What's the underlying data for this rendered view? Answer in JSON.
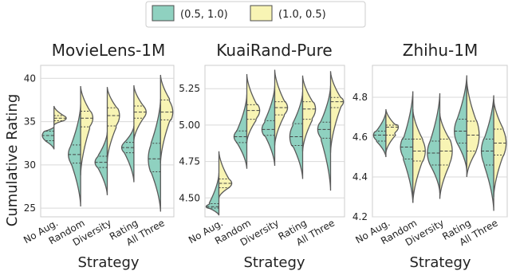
{
  "figure": {
    "ylabel": "Cumulative Rating",
    "legend": {
      "placement": "top-center",
      "entries": [
        {
          "label": "(0.5, 1.0)",
          "color": "#8fd1c0"
        },
        {
          "label": "(1.0, 0.5)",
          "color": "#f8f4b4"
        }
      ]
    }
  },
  "chart_data": [
    {
      "type": "violin",
      "title": "MovieLens-1M",
      "xlabel": "Strategy",
      "categories": [
        "No Aug.",
        "Random",
        "Diversity",
        "Rating",
        "All Three"
      ],
      "ylim": [
        24,
        41.5
      ],
      "yticks": [
        25,
        30,
        35,
        40
      ],
      "grid": true,
      "split": true,
      "series": [
        {
          "name": "(0.5, 1.0)",
          "min": [
            31.8,
            25.2,
            26.5,
            28.0,
            24.6
          ],
          "q1": [
            32.8,
            30.2,
            29.7,
            31.4,
            29.2
          ],
          "median": [
            33.4,
            31.2,
            30.3,
            32.0,
            30.7
          ],
          "q3": [
            33.9,
            32.3,
            31.0,
            32.6,
            32.5
          ],
          "max": [
            34.4,
            37.0,
            33.8,
            34.5,
            37.6
          ]
        },
        {
          "name": "(1.0, 0.5)",
          "min": [
            34.6,
            28.8,
            30.4,
            32.8,
            30.2
          ],
          "q1": [
            35.1,
            34.4,
            34.5,
            35.4,
            35.2
          ],
          "median": [
            35.4,
            35.4,
            35.7,
            36.1,
            36.1
          ],
          "q3": [
            35.7,
            36.2,
            36.6,
            36.8,
            37.5
          ],
          "max": [
            36.8,
            39.1,
            39.0,
            39.2,
            40.4
          ]
        }
      ]
    },
    {
      "type": "violin",
      "title": "KuaiRand-Pure",
      "xlabel": "Strategy",
      "categories": [
        "No Aug.",
        "Random",
        "Diversity",
        "Rating",
        "All Three"
      ],
      "ylim": [
        4.37,
        5.41
      ],
      "yticks": [
        4.5,
        4.75,
        5.0,
        5.25
      ],
      "grid": true,
      "split": true,
      "series": [
        {
          "name": "(0.5, 1.0)",
          "min": [
            4.38,
            4.7,
            4.72,
            4.63,
            4.55
          ],
          "q1": [
            4.43,
            4.88,
            4.93,
            4.86,
            4.91
          ],
          "median": [
            4.44,
            4.92,
            4.97,
            4.92,
            4.97
          ],
          "q3": [
            4.46,
            4.96,
            5.03,
            5.01,
            5.02
          ],
          "max": [
            4.67,
            5.21,
            5.27,
            5.23,
            5.27
          ]
        },
        {
          "name": "(1.0, 0.5)",
          "min": [
            4.5,
            4.88,
            4.86,
            4.82,
            4.81
          ],
          "q1": [
            4.57,
            5.04,
            5.07,
            5.04,
            5.12
          ],
          "median": [
            4.6,
            5.1,
            5.12,
            5.11,
            5.16
          ],
          "q3": [
            4.63,
            5.14,
            5.16,
            5.16,
            5.19
          ],
          "max": [
            4.82,
            5.35,
            5.38,
            5.34,
            5.37
          ]
        }
      ]
    },
    {
      "type": "violin",
      "title": "Zhihu-1M",
      "xlabel": "Strategy",
      "categories": [
        "No Aug.",
        "Random",
        "Diversity",
        "Rating",
        "All Three"
      ],
      "ylim": [
        4.2,
        4.96
      ],
      "yticks": [
        4.2,
        4.4,
        4.6,
        4.8
      ],
      "grid": true,
      "split": true,
      "series": [
        {
          "name": "(0.5, 1.0)",
          "min": [
            4.5,
            4.27,
            4.32,
            4.43,
            4.23
          ],
          "q1": [
            4.58,
            4.49,
            4.46,
            4.57,
            4.46
          ],
          "median": [
            4.61,
            4.55,
            4.52,
            4.63,
            4.53
          ],
          "q3": [
            4.63,
            4.59,
            4.58,
            4.69,
            4.59
          ],
          "max": [
            4.73,
            4.83,
            4.82,
            4.91,
            4.81
          ]
        },
        {
          "name": "(1.0, 0.5)",
          "min": [
            4.52,
            4.27,
            4.29,
            4.4,
            4.3
          ],
          "q1": [
            4.61,
            4.48,
            4.46,
            4.53,
            4.51
          ],
          "median": [
            4.65,
            4.53,
            4.53,
            4.61,
            4.57
          ],
          "q3": [
            4.66,
            4.59,
            4.59,
            4.68,
            4.64
          ],
          "max": [
            4.74,
            4.74,
            4.72,
            4.89,
            4.79
          ]
        }
      ]
    }
  ]
}
